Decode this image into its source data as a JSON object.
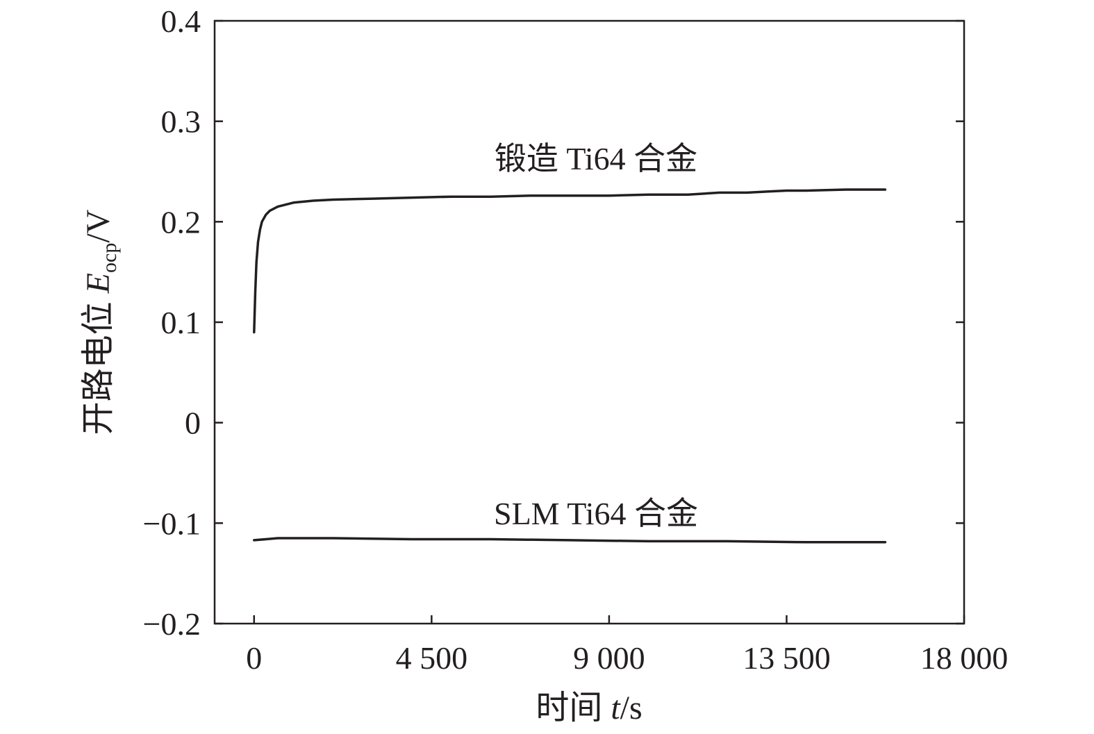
{
  "chart_data": {
    "type": "line",
    "xlabel": {
      "prefix": "时间 ",
      "var": "t",
      "suffix": "/s"
    },
    "ylabel": {
      "prefix": "开路电位 ",
      "var": "E",
      "sub": "ocp",
      "suffix": "/V"
    },
    "xlim": [
      -1000,
      18000
    ],
    "ylim": [
      -0.2,
      0.4
    ],
    "x_ticks": [
      0,
      4500,
      9000,
      13500,
      18000
    ],
    "x_tick_labels": [
      "0",
      "4 500",
      "9 000",
      "13 500",
      "18 000"
    ],
    "y_ticks": [
      -0.2,
      -0.1,
      0,
      0.1,
      0.2,
      0.3,
      0.4
    ],
    "y_tick_labels": [
      "−0.2",
      "−0.1",
      "0",
      "0.1",
      "0.2",
      "0.3",
      "0.4"
    ],
    "series": [
      {
        "name": "锻造 Ti64 合金",
        "x": [
          0,
          30,
          60,
          100,
          150,
          200,
          300,
          400,
          600,
          800,
          1000,
          1500,
          2000,
          3000,
          4000,
          5000,
          6000,
          7000,
          8000,
          9000,
          10000,
          11000,
          11800,
          12500,
          13000,
          13500,
          14000,
          15000,
          16000
        ],
        "y": [
          0.09,
          0.13,
          0.16,
          0.18,
          0.192,
          0.2,
          0.207,
          0.211,
          0.215,
          0.217,
          0.219,
          0.221,
          0.222,
          0.223,
          0.224,
          0.225,
          0.225,
          0.226,
          0.226,
          0.226,
          0.227,
          0.227,
          0.229,
          0.229,
          0.23,
          0.231,
          0.231,
          0.232,
          0.232
        ]
      },
      {
        "name": "SLM Ti64 合金",
        "x": [
          0,
          300,
          600,
          1000,
          2000,
          4000,
          6000,
          8000,
          10000,
          12000,
          14000,
          16000
        ],
        "y": [
          -0.117,
          -0.116,
          -0.115,
          -0.115,
          -0.115,
          -0.116,
          -0.116,
          -0.117,
          -0.118,
          -0.118,
          -0.119,
          -0.119
        ]
      }
    ]
  }
}
